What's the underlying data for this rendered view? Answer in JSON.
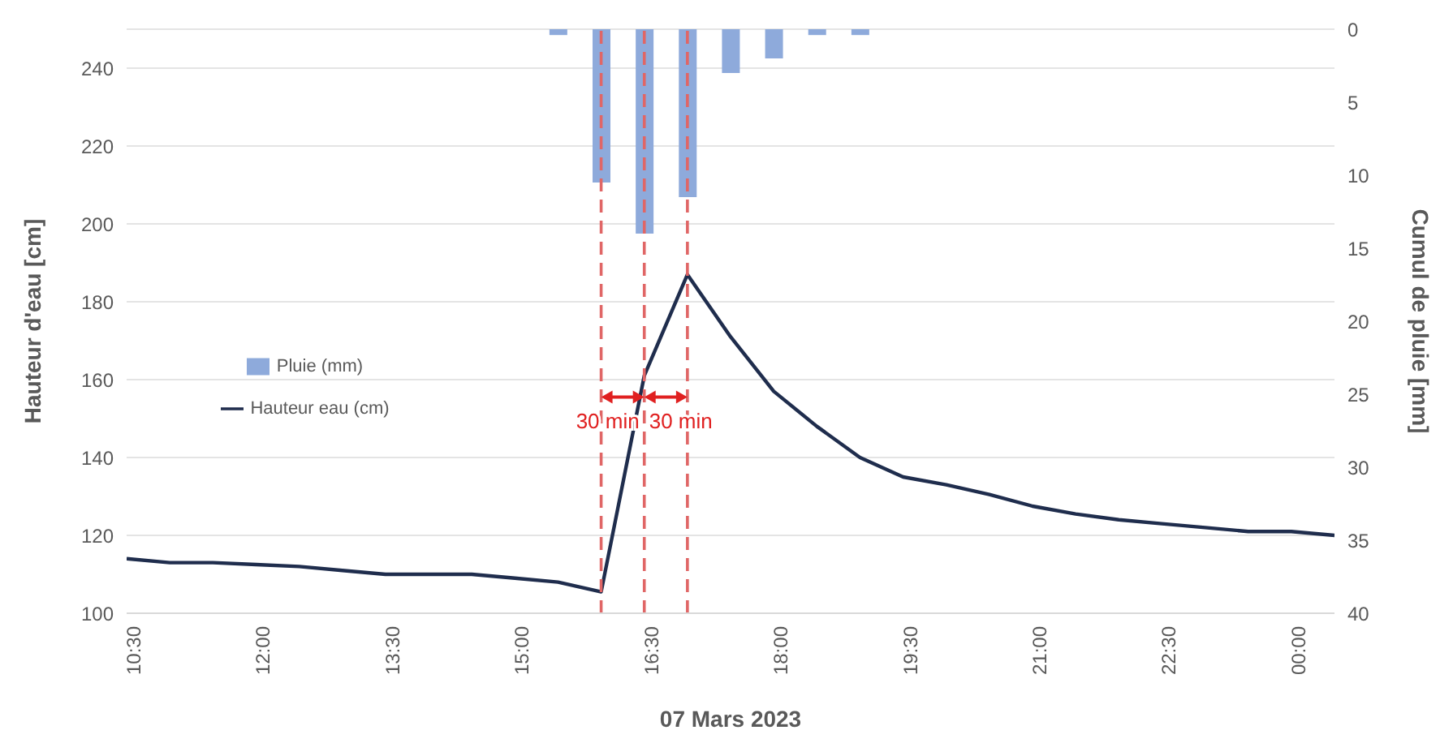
{
  "chart_data": {
    "type": "line",
    "xlabel": "07 Mars 2023",
    "ylabel": "Hauteur d'eau [cm]",
    "y2label": "Cumul de pluie [mm]",
    "x": [
      10.5,
      11,
      11.5,
      12,
      12.5,
      13,
      13.5,
      14,
      14.5,
      15,
      15.5,
      16,
      16.5,
      17,
      17.5,
      18,
      18.5,
      19,
      19.5,
      20,
      20.5,
      21,
      21.5,
      22,
      22.5,
      23,
      23.5,
      24,
      24.5
    ],
    "series": [
      {
        "name": "Pluie (mm)",
        "type": "bar",
        "axis": "y2",
        "color": "#8eaadb",
        "values": [
          null,
          null,
          null,
          null,
          null,
          null,
          null,
          null,
          null,
          null,
          0.4,
          10.5,
          14,
          11.5,
          3,
          2,
          0.4,
          0.4,
          null,
          null,
          null,
          null,
          null,
          null,
          null,
          null,
          null,
          null,
          null
        ]
      },
      {
        "name": "Hauteur eau (cm)",
        "color": "#1f2d4d",
        "values": [
          114,
          113,
          113,
          112.5,
          112,
          111,
          110,
          110,
          110,
          109,
          108,
          105.5,
          161,
          187,
          171,
          157,
          148,
          140,
          135,
          133,
          130.5,
          127.5,
          125.5,
          124,
          123,
          122,
          121,
          121,
          120
        ]
      }
    ],
    "xlim": [
      10.5,
      24.5
    ],
    "xticks": [
      {
        "value": 10.5,
        "label": "10:30"
      },
      {
        "value": 12,
        "label": "12:00"
      },
      {
        "value": 13.5,
        "label": "13:30"
      },
      {
        "value": 15,
        "label": "15:00"
      },
      {
        "value": 16.5,
        "label": "16:30"
      },
      {
        "value": 18,
        "label": "18:00"
      },
      {
        "value": 19.5,
        "label": "19:30"
      },
      {
        "value": 21,
        "label": "21:00"
      },
      {
        "value": 22.5,
        "label": "22:30"
      },
      {
        "value": 24,
        "label": "00:00"
      }
    ],
    "ylim": [
      100,
      250
    ],
    "yticks": [
      100,
      120,
      140,
      160,
      180,
      200,
      220,
      240
    ],
    "y2lim": [
      40,
      0
    ],
    "y2ticks": [
      0,
      5,
      10,
      15,
      20,
      25,
      30,
      35,
      40
    ],
    "ref_lines": [
      {
        "axis": "x",
        "value": 16,
        "color": "#e06666",
        "line_style": "dashed"
      },
      {
        "axis": "x",
        "value": 16.5,
        "color": "#e06666",
        "line_style": "dashed"
      },
      {
        "axis": "x",
        "value": 17,
        "color": "#e06666",
        "line_style": "dashed"
      }
    ],
    "annotations": [
      "30 min",
      "30 min"
    ],
    "grid": "y",
    "legend": "left",
    "marker": "none",
    "line_style": "solid"
  }
}
